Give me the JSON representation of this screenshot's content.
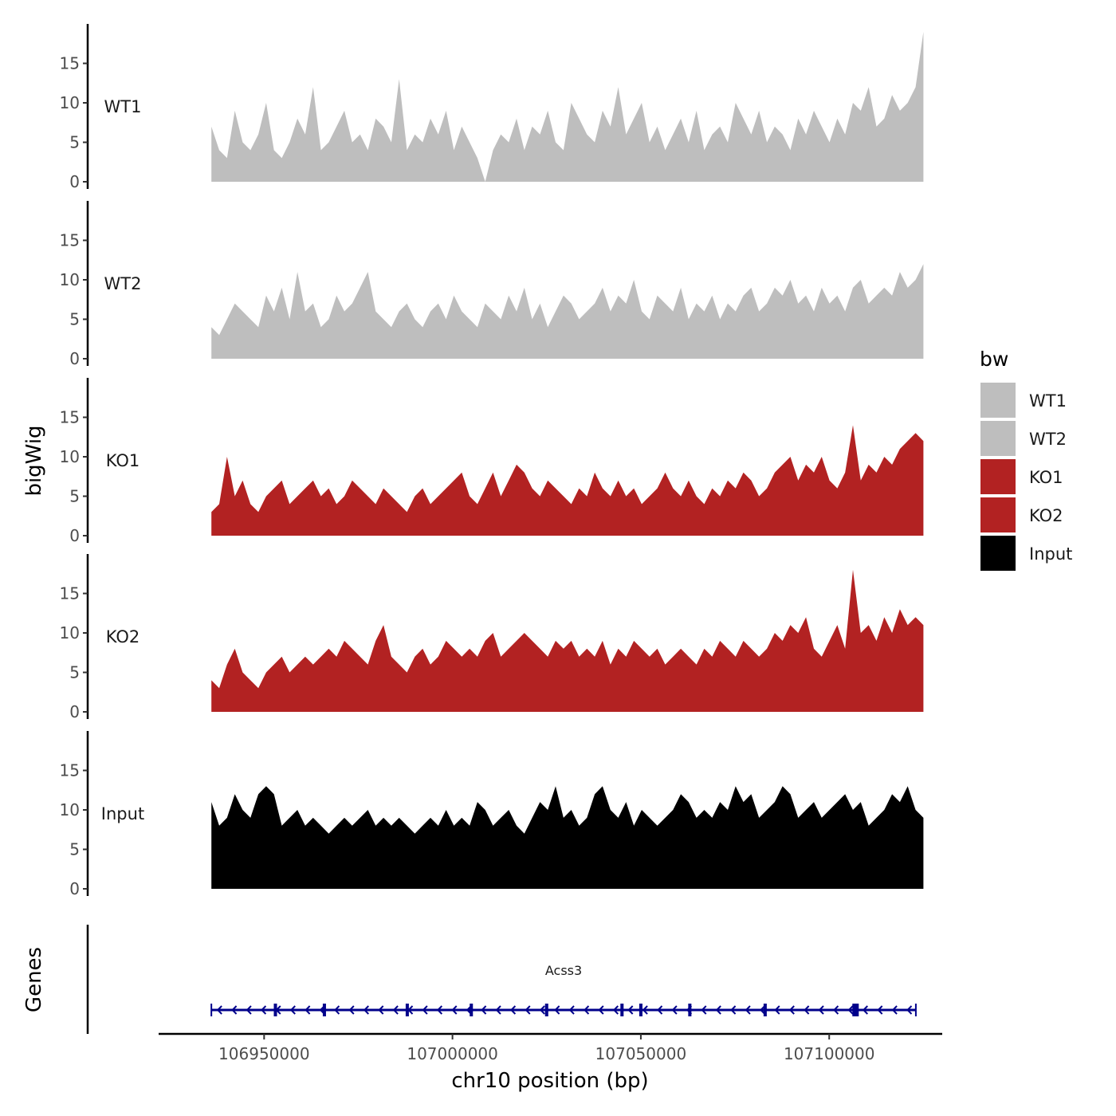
{
  "chart_data": {
    "type": "area",
    "title": "",
    "xlabel": "chr10 position (bp)",
    "ylabel": "bigWig",
    "gene_panel_label": "Genes",
    "chromosome": "chr10",
    "xlim": [
      106922000,
      107130000
    ],
    "ylim": [
      0,
      20
    ],
    "x_ticks": [
      106950000,
      107000000,
      107050000,
      107100000
    ],
    "x_tick_labels": [
      "106950000",
      "107000000",
      "107050000",
      "107100000"
    ],
    "y_ticks": [
      0,
      5,
      10,
      15
    ],
    "y_tick_labels": [
      "0",
      "5",
      "10",
      "15"
    ],
    "grid": false,
    "legend": {
      "title": "bw",
      "position": "right",
      "entries": [
        {
          "name": "WT1",
          "color": "#bebebe"
        },
        {
          "name": "WT2",
          "color": "#bebebe"
        },
        {
          "name": "KO1",
          "color": "#b22222"
        },
        {
          "name": "KO2",
          "color": "#b22222"
        },
        {
          "name": "Input",
          "color": "#000000"
        }
      ]
    },
    "series": [
      {
        "name": "WT1",
        "color": "#bebebe",
        "x_range": [
          106936000,
          107125000
        ],
        "values": [
          7,
          4,
          3,
          9,
          5,
          4,
          6,
          10,
          4,
          3,
          5,
          8,
          6,
          12,
          4,
          5,
          7,
          9,
          5,
          6,
          4,
          8,
          7,
          5,
          13,
          4,
          6,
          5,
          8,
          6,
          9,
          4,
          7,
          5,
          3,
          0,
          4,
          6,
          5,
          8,
          4,
          7,
          6,
          9,
          5,
          4,
          10,
          8,
          6,
          5,
          9,
          7,
          12,
          6,
          8,
          10,
          5,
          7,
          4,
          6,
          8,
          5,
          9,
          4,
          6,
          7,
          5,
          10,
          8,
          6,
          9,
          5,
          7,
          6,
          4,
          8,
          6,
          9,
          7,
          5,
          8,
          6,
          10,
          9,
          12,
          7,
          8,
          11,
          9,
          10,
          12,
          19
        ]
      },
      {
        "name": "WT2",
        "color": "#bebebe",
        "x_range": [
          106936000,
          107125000
        ],
        "values": [
          4,
          3,
          5,
          7,
          6,
          5,
          4,
          8,
          6,
          9,
          5,
          11,
          6,
          7,
          4,
          5,
          8,
          6,
          7,
          9,
          11,
          6,
          5,
          4,
          6,
          7,
          5,
          4,
          6,
          7,
          5,
          8,
          6,
          5,
          4,
          7,
          6,
          5,
          8,
          6,
          9,
          5,
          7,
          4,
          6,
          8,
          7,
          5,
          6,
          7,
          9,
          6,
          8,
          7,
          10,
          6,
          5,
          8,
          7,
          6,
          9,
          5,
          7,
          6,
          8,
          5,
          7,
          6,
          8,
          9,
          6,
          7,
          9,
          8,
          10,
          7,
          8,
          6,
          9,
          7,
          8,
          6,
          9,
          10,
          7,
          8,
          9,
          8,
          11,
          9,
          10,
          12
        ]
      },
      {
        "name": "KO1",
        "color": "#b22222",
        "x_range": [
          106936000,
          107125000
        ],
        "values": [
          3,
          4,
          10,
          5,
          7,
          4,
          3,
          5,
          6,
          7,
          4,
          5,
          6,
          7,
          5,
          6,
          4,
          5,
          7,
          6,
          5,
          4,
          6,
          5,
          4,
          3,
          5,
          6,
          4,
          5,
          6,
          7,
          8,
          5,
          4,
          6,
          8,
          5,
          7,
          9,
          8,
          6,
          5,
          7,
          6,
          5,
          4,
          6,
          5,
          8,
          6,
          5,
          7,
          5,
          6,
          4,
          5,
          6,
          8,
          6,
          5,
          7,
          5,
          4,
          6,
          5,
          7,
          6,
          8,
          7,
          5,
          6,
          8,
          9,
          10,
          7,
          9,
          8,
          10,
          7,
          6,
          8,
          14,
          7,
          9,
          8,
          10,
          9,
          11,
          12,
          13,
          12
        ]
      },
      {
        "name": "KO2",
        "color": "#b22222",
        "x_range": [
          106936000,
          107125000
        ],
        "values": [
          4,
          3,
          6,
          8,
          5,
          4,
          3,
          5,
          6,
          7,
          5,
          6,
          7,
          6,
          7,
          8,
          7,
          9,
          8,
          7,
          6,
          9,
          11,
          7,
          6,
          5,
          7,
          8,
          6,
          7,
          9,
          8,
          7,
          8,
          7,
          9,
          10,
          7,
          8,
          9,
          10,
          9,
          8,
          7,
          9,
          8,
          9,
          7,
          8,
          7,
          9,
          6,
          8,
          7,
          9,
          8,
          7,
          8,
          6,
          7,
          8,
          7,
          6,
          8,
          7,
          9,
          8,
          7,
          9,
          8,
          7,
          8,
          10,
          9,
          11,
          10,
          12,
          8,
          7,
          9,
          11,
          8,
          18,
          10,
          11,
          9,
          12,
          10,
          13,
          11,
          12,
          11
        ]
      },
      {
        "name": "Input",
        "color": "#000000",
        "x_range": [
          106936000,
          107125000
        ],
        "values": [
          11,
          8,
          9,
          12,
          10,
          9,
          12,
          13,
          12,
          8,
          9,
          10,
          8,
          9,
          8,
          7,
          8,
          9,
          8,
          9,
          10,
          8,
          9,
          8,
          9,
          8,
          7,
          8,
          9,
          8,
          10,
          8,
          9,
          8,
          11,
          10,
          8,
          9,
          10,
          8,
          7,
          9,
          11,
          10,
          13,
          9,
          10,
          8,
          9,
          12,
          13,
          10,
          9,
          11,
          8,
          10,
          9,
          8,
          9,
          10,
          12,
          11,
          9,
          10,
          9,
          11,
          10,
          13,
          11,
          12,
          9,
          10,
          11,
          13,
          12,
          9,
          10,
          11,
          9,
          10,
          11,
          12,
          10,
          11,
          8,
          9,
          10,
          12,
          11,
          13,
          10,
          9
        ]
      }
    ],
    "genes": [
      {
        "name": "Acss3",
        "start": 106936000,
        "end": 107123000,
        "strand": "-",
        "color": "#00008b",
        "exons": [
          106953000,
          106966000,
          106988000,
          107005000,
          107025000,
          107045000,
          107050000,
          107063000,
          107083000,
          107107000
        ]
      }
    ]
  }
}
